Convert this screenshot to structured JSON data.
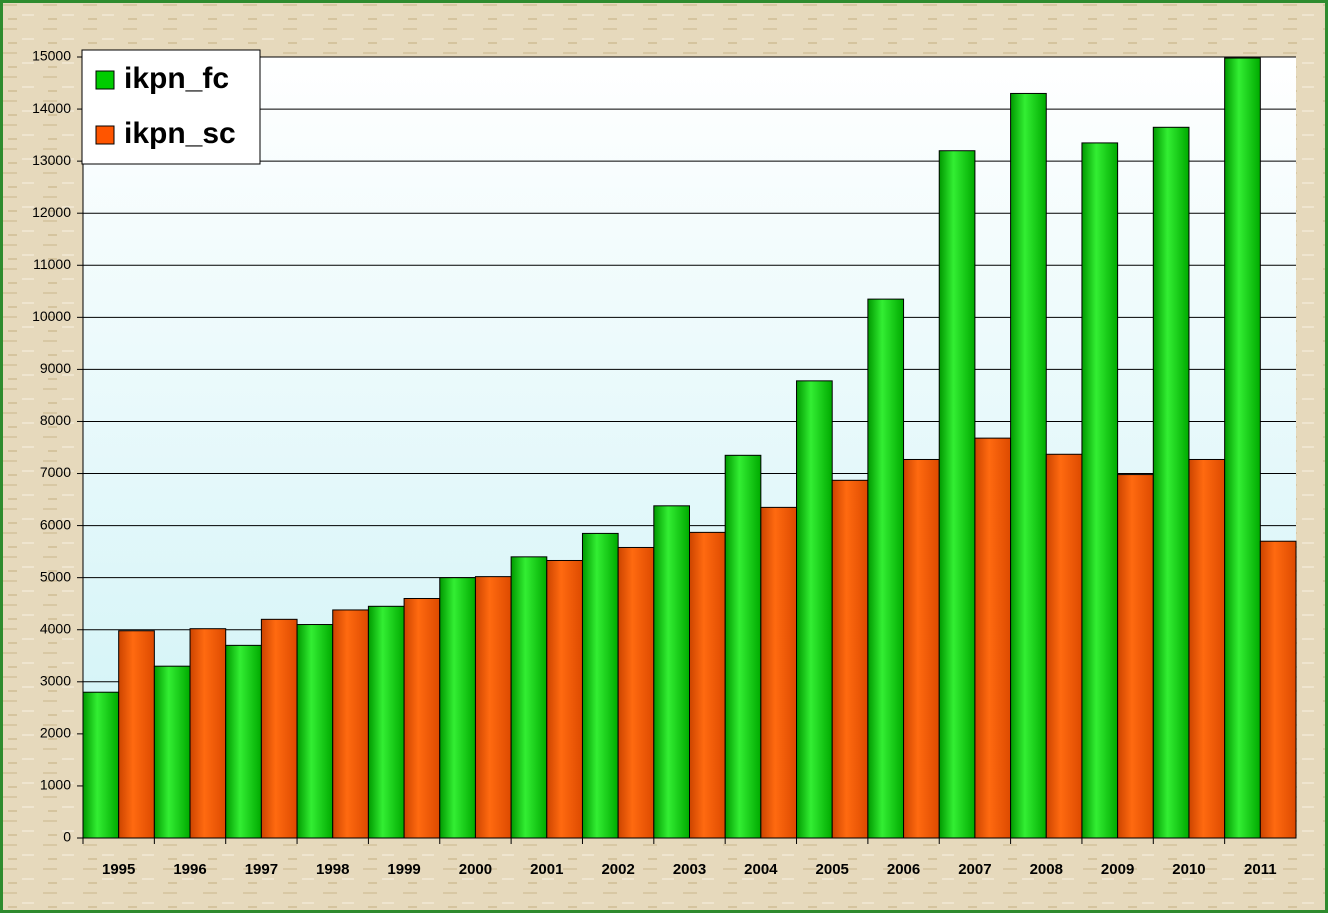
{
  "chart_data": {
    "type": "bar",
    "categories": [
      "1995",
      "1996",
      "1997",
      "1998",
      "1999",
      "2000",
      "2001",
      "2002",
      "2003",
      "2004",
      "2005",
      "2006",
      "2007",
      "2008",
      "2009",
      "2010",
      "2011"
    ],
    "series": [
      {
        "name": "ikpn_fc",
        "color": "#00cc00",
        "values": [
          2800,
          3300,
          3700,
          4100,
          4450,
          5000,
          5400,
          5850,
          6380,
          7350,
          8780,
          10350,
          13200,
          14300,
          13350,
          13650,
          14980
        ]
      },
      {
        "name": "ikpn_sc",
        "color": "#ff5500",
        "values": [
          3980,
          4020,
          4200,
          4380,
          4600,
          5020,
          5330,
          5580,
          5870,
          6350,
          6870,
          7270,
          7680,
          7370,
          6980,
          7270,
          5700
        ]
      }
    ],
    "ylim": [
      0,
      15000
    ],
    "yticks": [
      0,
      1000,
      2000,
      3000,
      4000,
      5000,
      6000,
      7000,
      8000,
      9000,
      10000,
      11000,
      12000,
      13000,
      14000,
      15000
    ],
    "grid": true,
    "legend": "upper left"
  }
}
